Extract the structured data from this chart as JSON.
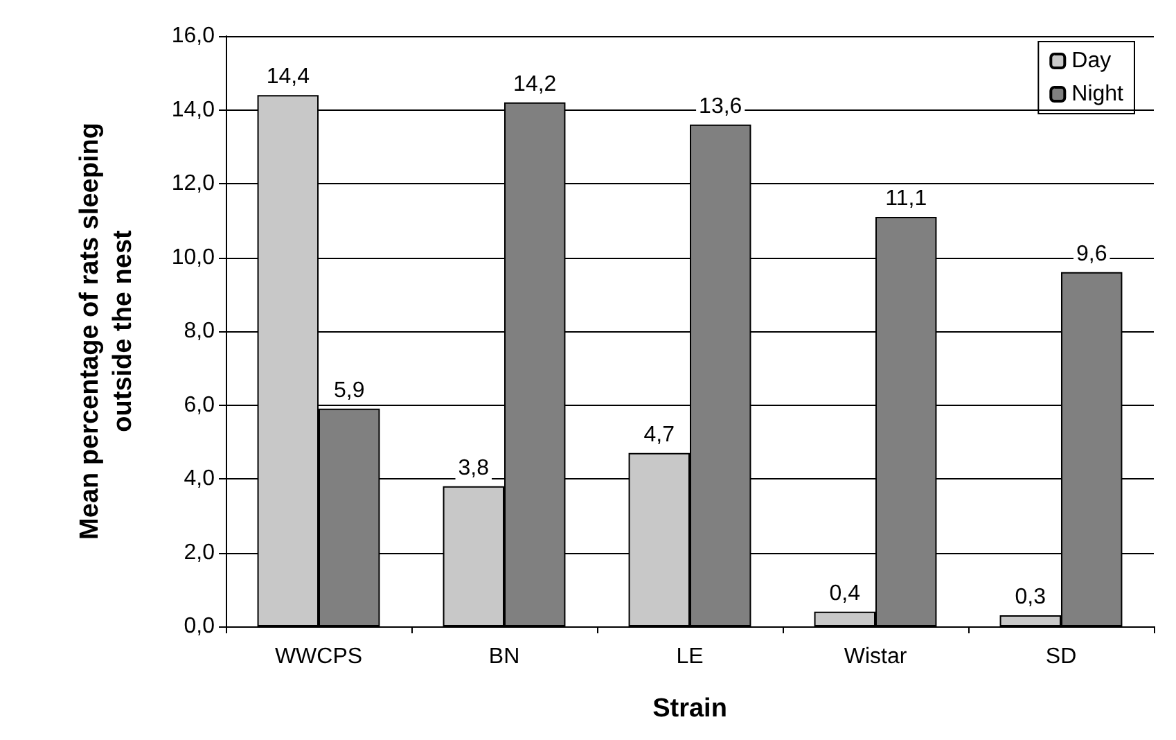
{
  "chart_data": {
    "type": "bar",
    "xlabel": "Strain",
    "ylabel": "Mean percentage of rats sleeping\noutside the nest",
    "categories": [
      "WWCPS",
      "BN",
      "LE",
      "Wistar",
      "SD"
    ],
    "series": [
      {
        "name": "Day",
        "color": "#c8c8c8",
        "values": [
          14.4,
          3.8,
          4.7,
          0.4,
          0.3
        ],
        "value_labels": [
          "14,4",
          "3,8",
          "4,7",
          "0,4",
          "0,3"
        ]
      },
      {
        "name": "Night",
        "color": "#808080",
        "values": [
          5.9,
          14.2,
          13.6,
          11.1,
          9.6
        ],
        "value_labels": [
          "5,9",
          "14,2",
          "13,6",
          "11,1",
          "9,6"
        ]
      }
    ],
    "ylim": [
      0,
      16
    ],
    "yticks": [
      {
        "value": 0,
        "label": "0,0"
      },
      {
        "value": 2,
        "label": "2,0"
      },
      {
        "value": 4,
        "label": "4,0"
      },
      {
        "value": 6,
        "label": "6,0"
      },
      {
        "value": 8,
        "label": "8,0"
      },
      {
        "value": 10,
        "label": "10,0"
      },
      {
        "value": 12,
        "label": "12,0"
      },
      {
        "value": 14,
        "label": "14,0"
      },
      {
        "value": 16,
        "label": "16,0"
      }
    ],
    "grid": "y",
    "legend": "top right"
  }
}
